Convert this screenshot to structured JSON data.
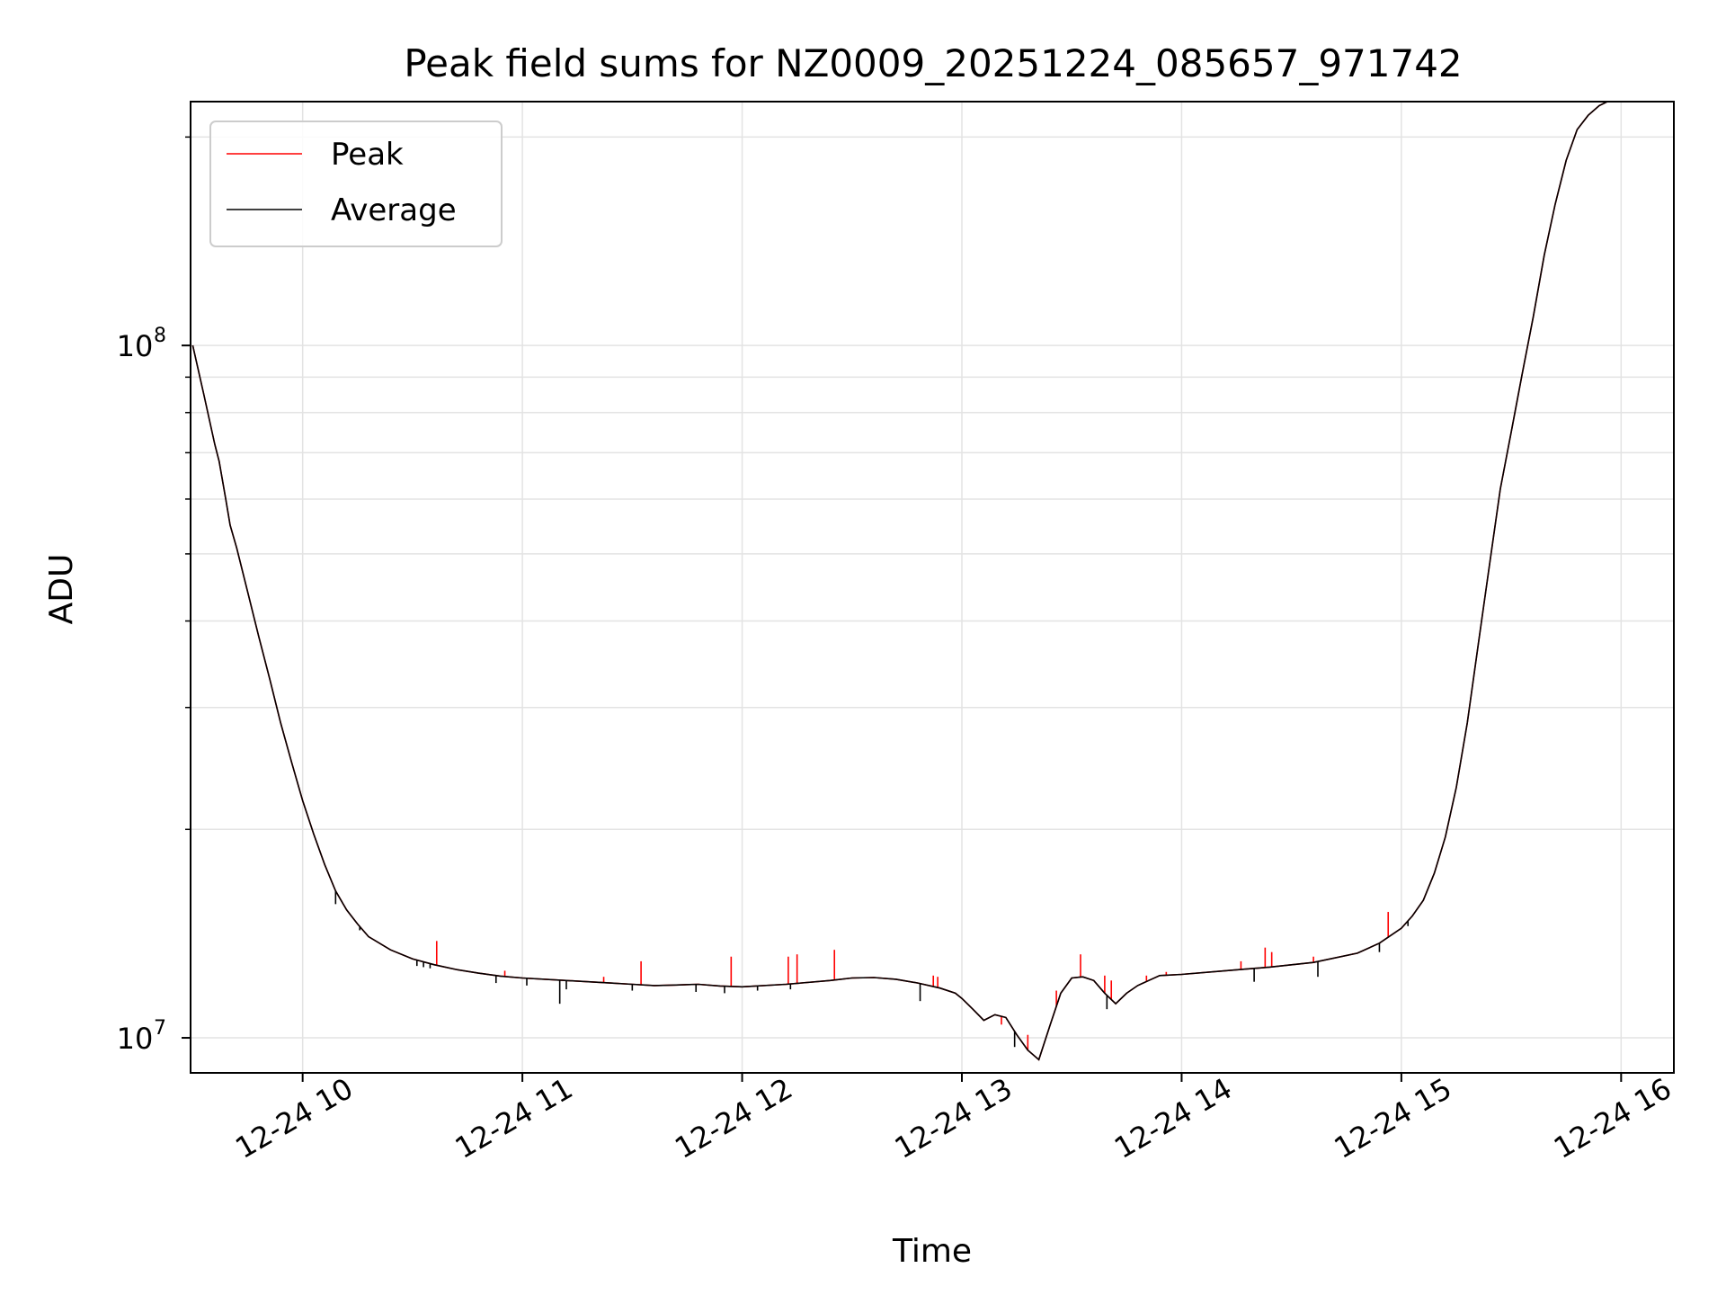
{
  "chart_data": {
    "type": "line",
    "title": "Peak field sums for NZ0009_20251224_085657_971742",
    "xlabel": "Time",
    "ylabel": "ADU",
    "yscale": "log",
    "xlim": [
      9.49,
      16.24
    ],
    "ylim": [
      8900000.0,
      225000000.0
    ],
    "grid": true,
    "legend_position": "top-left",
    "x_tick_values": [
      10,
      11,
      12,
      13,
      14,
      15,
      16
    ],
    "x_tick_labels": [
      "12-24 10",
      "12-24 11",
      "12-24 12",
      "12-24 13",
      "12-24 14",
      "12-24 15",
      "12-24 16"
    ],
    "y_major_ticks": [
      {
        "value": 10000000,
        "base": "10",
        "exp": "7"
      },
      {
        "value": 100000000,
        "base": "10",
        "exp": "8"
      }
    ],
    "y_minor_ticks": [
      20000000,
      30000000,
      40000000,
      50000000,
      60000000,
      70000000,
      80000000,
      90000000,
      200000000
    ],
    "series": [
      {
        "name": "Peak",
        "color": "#ff0000",
        "x": [
          9.5,
          9.55,
          9.6,
          9.62,
          9.65,
          9.67,
          9.7,
          9.75,
          9.8,
          9.85,
          9.9,
          9.95,
          10.0,
          10.05,
          10.1,
          10.15,
          10.2,
          10.25,
          10.3,
          10.4,
          10.5,
          10.6,
          10.7,
          10.8,
          10.9,
          11.0,
          11.2,
          11.4,
          11.5,
          11.6,
          11.7,
          11.8,
          11.9,
          12.0,
          12.2,
          12.4,
          12.5,
          12.6,
          12.7,
          12.8,
          12.9,
          12.97,
          13.0,
          13.05,
          13.1,
          13.15,
          13.2,
          13.25,
          13.3,
          13.35,
          13.4,
          13.45,
          13.5,
          13.55,
          13.6,
          13.65,
          13.7,
          13.75,
          13.8,
          13.85,
          13.9,
          14.0,
          14.2,
          14.4,
          14.6,
          14.8,
          14.9,
          15.0,
          15.05,
          15.1,
          15.15,
          15.2,
          15.25,
          15.3,
          15.35,
          15.4,
          15.45,
          15.5,
          15.55,
          15.6,
          15.65,
          15.7,
          15.75,
          15.8,
          15.85,
          15.9,
          15.95,
          16.0,
          16.02
        ],
        "values": [
          100000000,
          85000000,
          72000000,
          68000000,
          60000000,
          55000000,
          51000000,
          44000000,
          38000000,
          33000000,
          28500000,
          25000000,
          22000000,
          19700000,
          17800000,
          16300000,
          15300000,
          14600000,
          14000000,
          13400000,
          13000000,
          12750000,
          12550000,
          12400000,
          12280000,
          12200000,
          12100000,
          12000000,
          11950000,
          11900000,
          11920000,
          11950000,
          11880000,
          11850000,
          11950000,
          12100000,
          12200000,
          12220000,
          12150000,
          12000000,
          11800000,
          11600000,
          11400000,
          11000000,
          10600000,
          10800000,
          10700000,
          10100000,
          9600000,
          9300000,
          10400000,
          11600000,
          12200000,
          12250000,
          12100000,
          11600000,
          11200000,
          11600000,
          11900000,
          12100000,
          12300000,
          12350000,
          12500000,
          12650000,
          12850000,
          13250000,
          13700000,
          14400000,
          15000000,
          15800000,
          17300000,
          19500000,
          23000000,
          28500000,
          37000000,
          48000000,
          62000000,
          75000000,
          91000000,
          110000000,
          135000000,
          160000000,
          185000000,
          205000000,
          215000000,
          222000000,
          226000000,
          228000000,
          229000000
        ]
      },
      {
        "name": "Average",
        "color": "#000000",
        "x": [
          9.5,
          9.55,
          9.6,
          9.62,
          9.65,
          9.67,
          9.7,
          9.75,
          9.8,
          9.85,
          9.9,
          9.95,
          10.0,
          10.05,
          10.1,
          10.15,
          10.2,
          10.25,
          10.3,
          10.4,
          10.5,
          10.6,
          10.7,
          10.8,
          10.9,
          11.0,
          11.2,
          11.4,
          11.5,
          11.6,
          11.7,
          11.8,
          11.9,
          12.0,
          12.2,
          12.4,
          12.5,
          12.6,
          12.7,
          12.8,
          12.9,
          12.97,
          13.0,
          13.05,
          13.1,
          13.15,
          13.2,
          13.25,
          13.3,
          13.35,
          13.4,
          13.45,
          13.5,
          13.55,
          13.6,
          13.65,
          13.7,
          13.75,
          13.8,
          13.85,
          13.9,
          14.0,
          14.2,
          14.4,
          14.6,
          14.8,
          14.9,
          15.0,
          15.05,
          15.1,
          15.15,
          15.2,
          15.25,
          15.3,
          15.35,
          15.4,
          15.45,
          15.5,
          15.55,
          15.6,
          15.65,
          15.7,
          15.75,
          15.8,
          15.85,
          15.9,
          15.95,
          16.0,
          16.02
        ],
        "values": [
          100000000,
          85000000,
          72000000,
          68000000,
          60000000,
          55000000,
          51000000,
          44000000,
          38000000,
          33000000,
          28500000,
          25000000,
          22000000,
          19700000,
          17800000,
          16300000,
          15300000,
          14600000,
          14000000,
          13400000,
          13000000,
          12750000,
          12550000,
          12400000,
          12280000,
          12200000,
          12100000,
          12000000,
          11950000,
          11900000,
          11920000,
          11950000,
          11880000,
          11850000,
          11950000,
          12100000,
          12200000,
          12220000,
          12150000,
          12000000,
          11800000,
          11600000,
          11400000,
          11000000,
          10600000,
          10800000,
          10700000,
          10100000,
          9600000,
          9300000,
          10400000,
          11600000,
          12200000,
          12250000,
          12100000,
          11600000,
          11200000,
          11600000,
          11900000,
          12100000,
          12300000,
          12350000,
          12500000,
          12650000,
          12850000,
          13250000,
          13700000,
          14400000,
          15000000,
          15800000,
          17300000,
          19500000,
          23000000,
          28500000,
          37000000,
          48000000,
          62000000,
          75000000,
          91000000,
          110000000,
          135000000,
          160000000,
          185000000,
          205000000,
          215000000,
          222000000,
          226000000,
          228000000,
          229000000
        ]
      }
    ],
    "peak_spikes": [
      {
        "x": 10.61,
        "value": 13800000
      },
      {
        "x": 10.92,
        "value": 12500000
      },
      {
        "x": 11.37,
        "value": 12250000
      },
      {
        "x": 11.54,
        "value": 12900000
      },
      {
        "x": 11.95,
        "value": 13100000
      },
      {
        "x": 12.21,
        "value": 13100000
      },
      {
        "x": 12.25,
        "value": 13200000
      },
      {
        "x": 12.42,
        "value": 13400000
      },
      {
        "x": 12.87,
        "value": 12300000
      },
      {
        "x": 12.89,
        "value": 12250000
      },
      {
        "x": 13.18,
        "value": 10450000
      },
      {
        "x": 13.3,
        "value": 10100000
      },
      {
        "x": 13.43,
        "value": 11700000
      },
      {
        "x": 13.54,
        "value": 13200000
      },
      {
        "x": 13.65,
        "value": 12300000
      },
      {
        "x": 13.68,
        "value": 12100000
      },
      {
        "x": 13.84,
        "value": 12300000
      },
      {
        "x": 13.93,
        "value": 12450000
      },
      {
        "x": 14.27,
        "value": 12900000
      },
      {
        "x": 14.38,
        "value": 13500000
      },
      {
        "x": 14.41,
        "value": 13300000
      },
      {
        "x": 14.6,
        "value": 13100000
      },
      {
        "x": 14.78,
        "value": 13250000
      },
      {
        "x": 14.94,
        "value": 15200000
      }
    ],
    "average_dips": [
      {
        "x": 10.15,
        "value": 15600000
      },
      {
        "x": 10.26,
        "value": 14300000
      },
      {
        "x": 10.52,
        "value": 12700000
      },
      {
        "x": 10.55,
        "value": 12650000
      },
      {
        "x": 10.58,
        "value": 12600000
      },
      {
        "x": 10.88,
        "value": 12000000
      },
      {
        "x": 11.02,
        "value": 11900000
      },
      {
        "x": 11.17,
        "value": 11200000
      },
      {
        "x": 11.2,
        "value": 11750000
      },
      {
        "x": 11.5,
        "value": 11700000
      },
      {
        "x": 11.79,
        "value": 11650000
      },
      {
        "x": 11.92,
        "value": 11600000
      },
      {
        "x": 12.07,
        "value": 11700000
      },
      {
        "x": 12.22,
        "value": 11750000
      },
      {
        "x": 12.81,
        "value": 11300000
      },
      {
        "x": 13.24,
        "value": 9700000
      },
      {
        "x": 13.66,
        "value": 11000000
      },
      {
        "x": 14.33,
        "value": 12050000
      },
      {
        "x": 14.62,
        "value": 12250000
      },
      {
        "x": 14.9,
        "value": 13300000
      },
      {
        "x": 15.03,
        "value": 14500000
      }
    ]
  }
}
